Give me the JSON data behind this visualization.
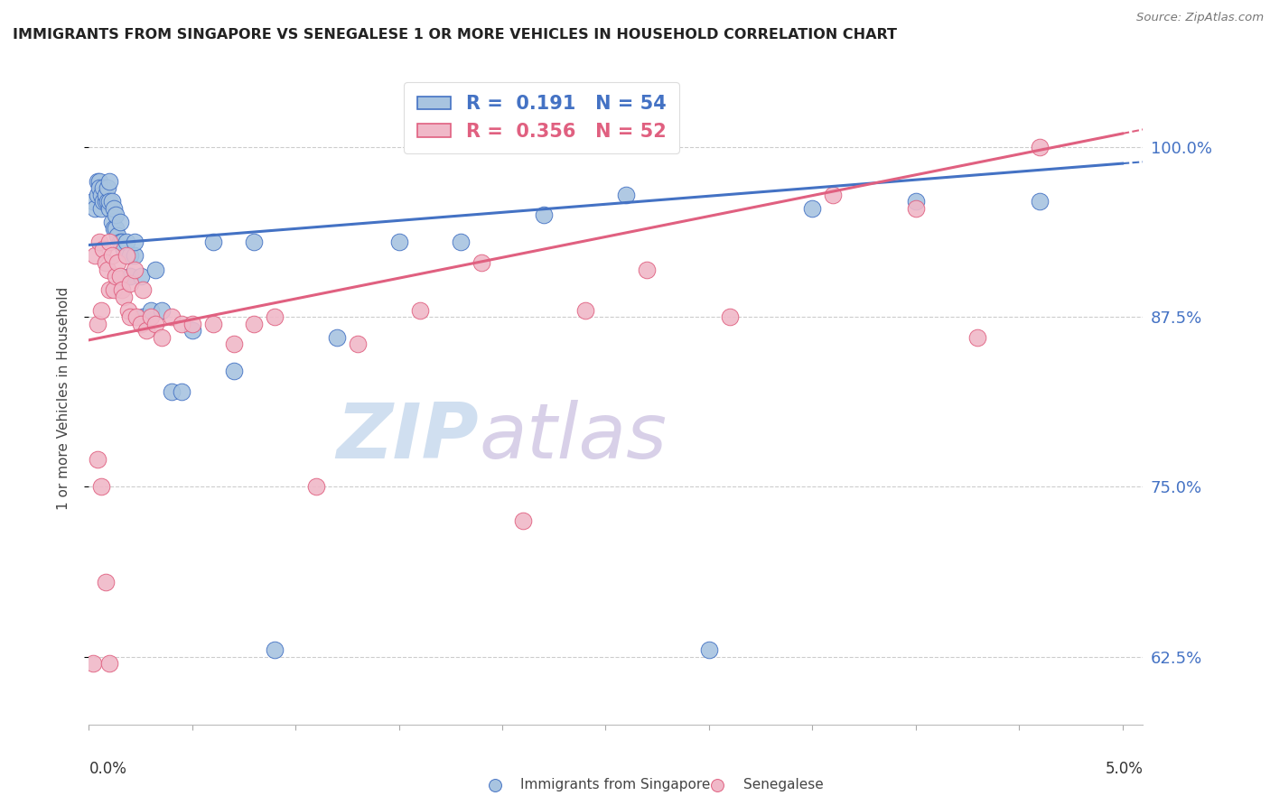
{
  "title": "IMMIGRANTS FROM SINGAPORE VS SENEGALESE 1 OR MORE VEHICLES IN HOUSEHOLD CORRELATION CHART",
  "source": "Source: ZipAtlas.com",
  "ylabel": "1 or more Vehicles in Household",
  "xmin": 0.0,
  "xmax": 0.05,
  "ymin": 0.575,
  "ymax": 1.055,
  "yticks": [
    0.625,
    0.75,
    0.875,
    1.0
  ],
  "ytick_labels": [
    "62.5%",
    "75.0%",
    "87.5%",
    "100.0%"
  ],
  "r_singapore": 0.191,
  "n_singapore": 54,
  "r_senegalese": 0.356,
  "n_senegalese": 52,
  "color_singapore": "#a8c4e0",
  "color_senegalese": "#f0b8c8",
  "color_singapore_line": "#4472c4",
  "color_senegalese_line": "#e06080",
  "color_right_axis": "#4472c4",
  "watermark_zip_color": "#d0dff0",
  "watermark_atlas_color": "#d8d0e8",
  "sg_line_y0": 0.928,
  "sg_line_y1": 0.988,
  "sn_line_y0": 0.858,
  "sn_line_y1": 1.01,
  "singapore_x": [
    0.0002,
    0.0003,
    0.0004,
    0.0004,
    0.0005,
    0.0005,
    0.0006,
    0.0006,
    0.0007,
    0.0007,
    0.0008,
    0.0008,
    0.0009,
    0.0009,
    0.001,
    0.001,
    0.001,
    0.0011,
    0.0011,
    0.0012,
    0.0012,
    0.0013,
    0.0013,
    0.0014,
    0.0015,
    0.0015,
    0.0016,
    0.0017,
    0.0018,
    0.002,
    0.002,
    0.0022,
    0.0022,
    0.0025,
    0.0026,
    0.003,
    0.0032,
    0.0035,
    0.004,
    0.0045,
    0.005,
    0.006,
    0.007,
    0.008,
    0.009,
    0.012,
    0.015,
    0.018,
    0.022,
    0.026,
    0.03,
    0.035,
    0.04,
    0.046
  ],
  "singapore_y": [
    0.96,
    0.955,
    0.965,
    0.975,
    0.975,
    0.97,
    0.955,
    0.965,
    0.96,
    0.97,
    0.96,
    0.965,
    0.96,
    0.97,
    0.955,
    0.96,
    0.975,
    0.945,
    0.96,
    0.94,
    0.955,
    0.94,
    0.95,
    0.935,
    0.93,
    0.945,
    0.93,
    0.925,
    0.93,
    0.92,
    0.905,
    0.92,
    0.93,
    0.905,
    0.875,
    0.88,
    0.91,
    0.88,
    0.82,
    0.82,
    0.865,
    0.93,
    0.835,
    0.93,
    0.63,
    0.86,
    0.93,
    0.93,
    0.95,
    0.965,
    0.63,
    0.955,
    0.96,
    0.96
  ],
  "senegalese_x": [
    0.0002,
    0.0003,
    0.0004,
    0.0005,
    0.0006,
    0.0007,
    0.0008,
    0.0009,
    0.001,
    0.001,
    0.0011,
    0.0012,
    0.0013,
    0.0014,
    0.0015,
    0.0016,
    0.0017,
    0.0018,
    0.0019,
    0.002,
    0.002,
    0.0022,
    0.0023,
    0.0025,
    0.0026,
    0.0028,
    0.003,
    0.0032,
    0.0035,
    0.004,
    0.0045,
    0.005,
    0.006,
    0.007,
    0.008,
    0.009,
    0.011,
    0.013,
    0.016,
    0.019,
    0.021,
    0.024,
    0.027,
    0.031,
    0.036,
    0.04,
    0.043,
    0.046,
    0.0004,
    0.0006,
    0.0008,
    0.001
  ],
  "senegalese_y": [
    0.62,
    0.92,
    0.87,
    0.93,
    0.88,
    0.925,
    0.915,
    0.91,
    0.895,
    0.93,
    0.92,
    0.895,
    0.905,
    0.915,
    0.905,
    0.895,
    0.89,
    0.92,
    0.88,
    0.875,
    0.9,
    0.91,
    0.875,
    0.87,
    0.895,
    0.865,
    0.875,
    0.87,
    0.86,
    0.875,
    0.87,
    0.87,
    0.87,
    0.855,
    0.87,
    0.875,
    0.75,
    0.855,
    0.88,
    0.915,
    0.725,
    0.88,
    0.91,
    0.875,
    0.965,
    0.955,
    0.86,
    1.0,
    0.77,
    0.75,
    0.68,
    0.62
  ]
}
